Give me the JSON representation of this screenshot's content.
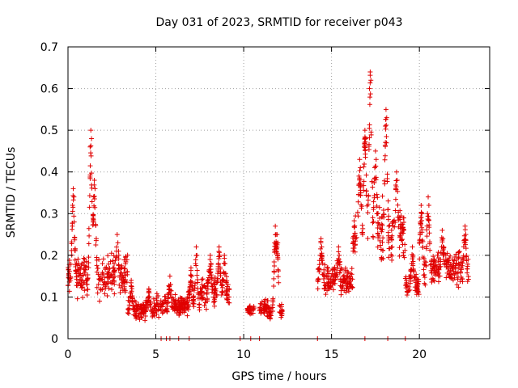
{
  "chart_data": {
    "type": "scatter",
    "title": "Day 031 of 2023, SRMTID for receiver p043",
    "xlabel": "GPS time / hours",
    "ylabel": "SRMTID / TECUs",
    "xlim": [
      0,
      24
    ],
    "ylim": [
      0,
      0.7
    ],
    "xticks": [
      0,
      5,
      10,
      15,
      20
    ],
    "xtick_labels": [
      "0",
      "5",
      "10",
      "15",
      "20"
    ],
    "yticks": [
      0,
      0.1,
      0.2,
      0.3,
      0.4,
      0.5,
      0.6,
      0.7
    ],
    "ytick_labels": [
      "0",
      "0.1",
      "0.2",
      "0.3",
      "0.4",
      "0.5",
      "0.6",
      "0.7"
    ],
    "grid": true,
    "marker": "+",
    "color": "#e00000",
    "series": [
      {
        "name": "SRMTID",
        "segments": [
          {
            "t0": 0.0,
            "t1": 3.4,
            "base": 0.15,
            "spread": 0.07,
            "peaks": [
              [
                0.3,
                0.36
              ],
              [
                1.3,
                0.5
              ],
              [
                1.5,
                0.38
              ],
              [
                2.8,
                0.25
              ]
            ]
          },
          {
            "t0": 3.4,
            "t1": 5.0,
            "base": 0.07,
            "spread": 0.03,
            "peaks": [
              [
                3.6,
                0.14
              ],
              [
                4.6,
                0.12
              ]
            ]
          },
          {
            "t0": 5.0,
            "t1": 7.5,
            "base": 0.08,
            "spread": 0.035,
            "peaks": [
              [
                5.8,
                0.15
              ],
              [
                7.0,
                0.17
              ],
              [
                7.3,
                0.22
              ]
            ]
          },
          {
            "t0": 7.5,
            "t1": 9.2,
            "base": 0.11,
            "spread": 0.05,
            "peaks": [
              [
                8.1,
                0.2
              ],
              [
                8.6,
                0.22
              ],
              [
                8.9,
                0.2
              ]
            ]
          },
          {
            "t0": 10.2,
            "t1": 10.6,
            "base": 0.07,
            "spread": 0.015,
            "peaks": []
          },
          {
            "t0": 10.9,
            "t1": 12.2,
            "base": 0.07,
            "spread": 0.03,
            "peaks": [
              [
                11.8,
                0.27
              ],
              [
                11.9,
                0.25
              ]
            ]
          },
          {
            "t0": 14.2,
            "t1": 16.2,
            "base": 0.14,
            "spread": 0.05,
            "peaks": [
              [
                14.4,
                0.24
              ],
              [
                15.4,
                0.22
              ]
            ]
          },
          {
            "t0": 16.2,
            "t1": 19.2,
            "base": 0.25,
            "spread": 0.1,
            "peaks": [
              [
                16.6,
                0.43
              ],
              [
                16.9,
                0.5
              ],
              [
                17.2,
                0.64
              ],
              [
                17.5,
                0.45
              ],
              [
                18.1,
                0.55
              ],
              [
                18.7,
                0.4
              ]
            ]
          },
          {
            "t0": 19.2,
            "t1": 20.0,
            "base": 0.13,
            "spread": 0.04,
            "peaks": [
              [
                19.6,
                0.22
              ]
            ]
          },
          {
            "t0": 20.0,
            "t1": 22.8,
            "base": 0.17,
            "spread": 0.06,
            "peaks": [
              [
                20.1,
                0.32
              ],
              [
                20.5,
                0.34
              ],
              [
                21.3,
                0.26
              ],
              [
                22.6,
                0.27
              ]
            ]
          }
        ],
        "zero_points": [
          5.3,
          5.6,
          5.8,
          6.3,
          6.9,
          9.8,
          10.4,
          10.9,
          14.2,
          16.9,
          18.2,
          19.2
        ]
      }
    ]
  }
}
